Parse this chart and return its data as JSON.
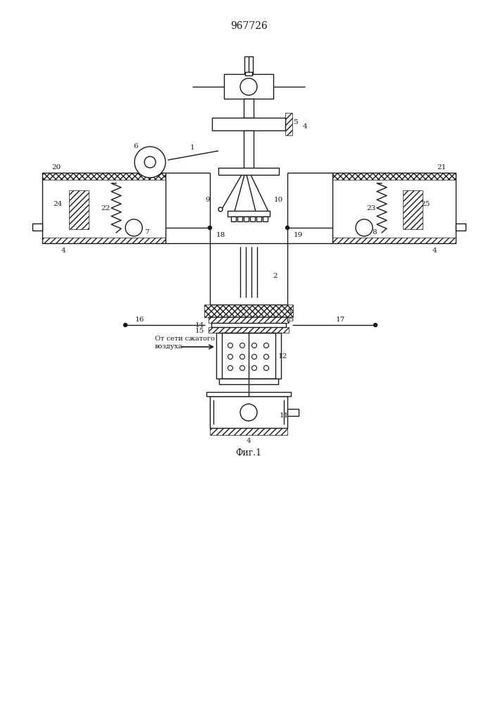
{
  "title": "967726",
  "fig_label": "Фиг.1",
  "air_label": "От сети сжатого\nвоздуха",
  "bg_color": "#ffffff",
  "line_color": "#1a1a1a"
}
